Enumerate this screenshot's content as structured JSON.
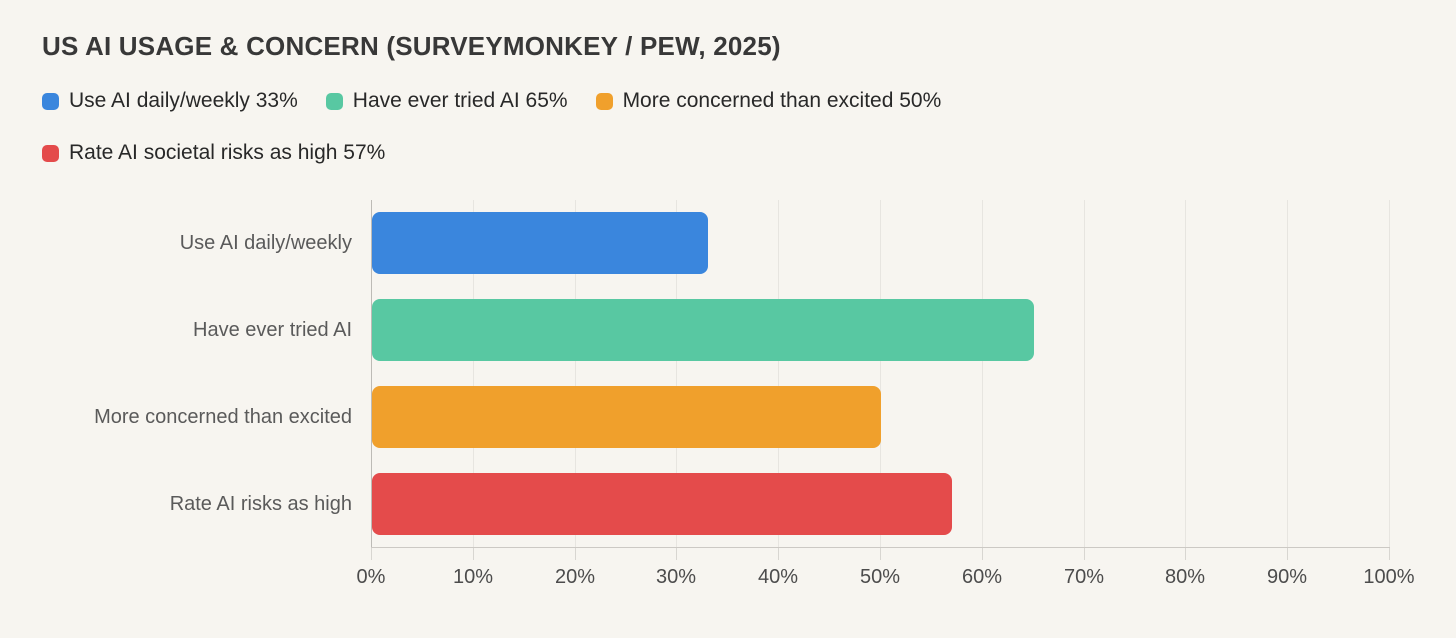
{
  "title": "US AI USAGE & CONCERN (SURVEYMONKEY / PEW, 2025)",
  "legend": {
    "items": [
      {
        "label": "Use AI daily/weekly 33%",
        "color": "#3a86dd",
        "swatch": "blue-swatch-icon"
      },
      {
        "label": "Have ever tried AI 65%",
        "color": "#58c8a2",
        "swatch": "green-swatch-icon"
      },
      {
        "label": "More concerned than excited 50%",
        "color": "#f0a02c",
        "swatch": "orange-swatch-icon"
      },
      {
        "label": "Rate AI societal risks as high 57%",
        "color": "#e44b4b",
        "swatch": "red-swatch-icon"
      }
    ],
    "rows": [
      [
        0,
        1,
        2
      ],
      [
        3
      ]
    ]
  },
  "chart_data": {
    "type": "bar",
    "orientation": "horizontal",
    "title": "US AI USAGE & CONCERN (SURVEYMONKEY / PEW, 2025)",
    "categories": [
      "Use AI daily/weekly",
      "Have ever tried AI",
      "More concerned than excited",
      "Rate AI risks as high"
    ],
    "values": [
      33,
      65,
      50,
      57
    ],
    "bar_colors": [
      "#3a86dd",
      "#58c8a2",
      "#f0a02c",
      "#e44b4b"
    ],
    "xlabel": "",
    "ylabel": "",
    "xlim": [
      0,
      100
    ],
    "x_tick_values": [
      0,
      10,
      20,
      30,
      40,
      50,
      60,
      70,
      80,
      90,
      100
    ],
    "x_tick_labels": [
      "0%",
      "10%",
      "20%",
      "30%",
      "40%",
      "50%",
      "60%",
      "70%",
      "80%",
      "90%",
      "100%"
    ],
    "grid": true,
    "legend_position": "top",
    "legend_entries": [
      "Use AI daily/weekly 33%",
      "Have ever tried AI 65%",
      "More concerned than excited 50%",
      "Rate AI societal risks as high 57%"
    ]
  },
  "colors": {
    "background": "#f7f5f0",
    "gridline": "#e7e5e0",
    "axis": "#bdbbb6",
    "title_text": "#383838",
    "legend_text": "#282828",
    "category_text": "#5a5a5a",
    "tick_text": "#4c4c4c"
  }
}
